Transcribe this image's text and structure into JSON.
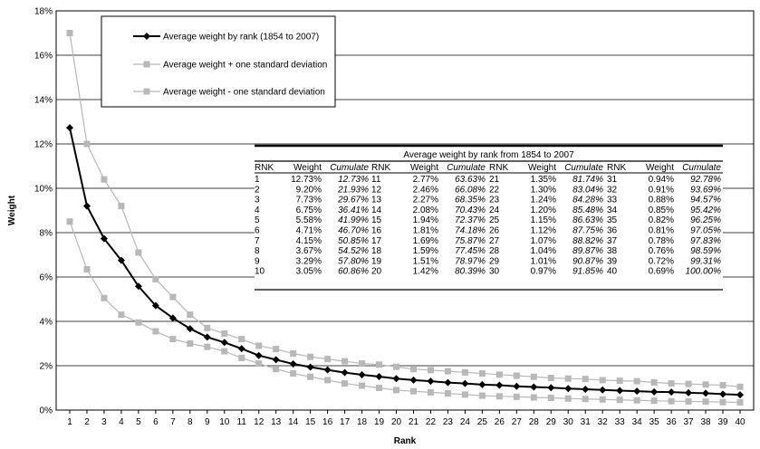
{
  "chart_data": {
    "type": "line",
    "xlabel": "Rank",
    "ylabel": "Weight",
    "x": [
      1,
      2,
      3,
      4,
      5,
      6,
      7,
      8,
      9,
      10,
      11,
      12,
      13,
      14,
      15,
      16,
      17,
      18,
      19,
      20,
      21,
      22,
      23,
      24,
      25,
      26,
      27,
      28,
      29,
      30,
      31,
      32,
      33,
      34,
      35,
      36,
      37,
      38,
      39,
      40
    ],
    "ylim": [
      0,
      18
    ],
    "yticks": [
      "0%",
      "2%",
      "4%",
      "6%",
      "8%",
      "10%",
      "12%",
      "14%",
      "16%",
      "18%"
    ],
    "grid": "horizontal",
    "legend_position": "top-left",
    "series": [
      {
        "name": "Average weight by rank (1854 to 2007)",
        "color": "#000000",
        "marker": "diamond",
        "values": [
          12.73,
          9.2,
          7.73,
          6.75,
          5.58,
          4.71,
          4.15,
          3.67,
          3.29,
          3.05,
          2.77,
          2.46,
          2.27,
          2.08,
          1.94,
          1.81,
          1.69,
          1.59,
          1.51,
          1.42,
          1.35,
          1.3,
          1.24,
          1.2,
          1.15,
          1.12,
          1.07,
          1.04,
          1.01,
          0.97,
          0.94,
          0.91,
          0.88,
          0.85,
          0.82,
          0.81,
          0.78,
          0.76,
          0.72,
          0.69
        ]
      },
      {
        "name": "Average weight +  one standard deviation",
        "color": "#b8b8b8",
        "marker": "square",
        "values": [
          17.0,
          12.0,
          10.4,
          9.2,
          7.1,
          5.9,
          5.1,
          4.3,
          3.7,
          3.45,
          3.2,
          2.9,
          2.75,
          2.55,
          2.4,
          2.3,
          2.2,
          2.1,
          2.05,
          1.95,
          1.85,
          1.8,
          1.75,
          1.7,
          1.65,
          1.6,
          1.55,
          1.5,
          1.45,
          1.42,
          1.4,
          1.35,
          1.32,
          1.3,
          1.25,
          1.2,
          1.18,
          1.15,
          1.12,
          1.05
        ]
      },
      {
        "name": "Average weight - one standard deviation",
        "color": "#b8b8b8",
        "marker": "square",
        "values": [
          8.5,
          6.35,
          5.05,
          4.3,
          3.95,
          3.55,
          3.2,
          3.0,
          2.85,
          2.65,
          2.35,
          2.1,
          1.85,
          1.65,
          1.5,
          1.35,
          1.2,
          1.1,
          1.0,
          0.9,
          0.85,
          0.8,
          0.75,
          0.7,
          0.65,
          0.62,
          0.6,
          0.57,
          0.55,
          0.52,
          0.5,
          0.48,
          0.46,
          0.44,
          0.42,
          0.4,
          0.39,
          0.38,
          0.36,
          0.35
        ]
      }
    ],
    "table": {
      "title": "Average weight by rank from 1854 to 2007",
      "headers": [
        "RNK",
        "Weight",
        "Cumulate"
      ],
      "rows": [
        [
          "1",
          "12.73%",
          "12.73%"
        ],
        [
          "2",
          "9.20%",
          "21.93%"
        ],
        [
          "3",
          "7.73%",
          "29.67%"
        ],
        [
          "4",
          "6.75%",
          "36.41%"
        ],
        [
          "5",
          "5.58%",
          "41.99%"
        ],
        [
          "6",
          "4.71%",
          "46.70%"
        ],
        [
          "7",
          "4.15%",
          "50.85%"
        ],
        [
          "8",
          "3.67%",
          "54.52%"
        ],
        [
          "9",
          "3.29%",
          "57.80%"
        ],
        [
          "10",
          "3.05%",
          "60.86%"
        ],
        [
          "11",
          "2.77%",
          "63.63%"
        ],
        [
          "12",
          "2.46%",
          "66.08%"
        ],
        [
          "13",
          "2.27%",
          "68.35%"
        ],
        [
          "14",
          "2.08%",
          "70.43%"
        ],
        [
          "15",
          "1.94%",
          "72.37%"
        ],
        [
          "16",
          "1.81%",
          "74.18%"
        ],
        [
          "17",
          "1.69%",
          "75.87%"
        ],
        [
          "18",
          "1.59%",
          "77.45%"
        ],
        [
          "19",
          "1.51%",
          "78.97%"
        ],
        [
          "20",
          "1.42%",
          "80.39%"
        ],
        [
          "21",
          "1.35%",
          "81.74%"
        ],
        [
          "22",
          "1.30%",
          "83.04%"
        ],
        [
          "23",
          "1.24%",
          "84.28%"
        ],
        [
          "24",
          "1.20%",
          "85.48%"
        ],
        [
          "25",
          "1.15%",
          "86.63%"
        ],
        [
          "26",
          "1.12%",
          "87.75%"
        ],
        [
          "27",
          "1.07%",
          "88.82%"
        ],
        [
          "28",
          "1.04%",
          "89.87%"
        ],
        [
          "29",
          "1.01%",
          "90.87%"
        ],
        [
          "30",
          "0.97%",
          "91.85%"
        ],
        [
          "31",
          "0.94%",
          "92.78%"
        ],
        [
          "32",
          "0.91%",
          "93.69%"
        ],
        [
          "33",
          "0.88%",
          "94.57%"
        ],
        [
          "34",
          "0.85%",
          "95.42%"
        ],
        [
          "35",
          "0.82%",
          "96.25%"
        ],
        [
          "36",
          "0.81%",
          "97.05%"
        ],
        [
          "37",
          "0.78%",
          "97.83%"
        ],
        [
          "38",
          "0.76%",
          "98.59%"
        ],
        [
          "39",
          "0.72%",
          "99.31%"
        ],
        [
          "40",
          "0.69%",
          "100.00%"
        ]
      ]
    }
  }
}
